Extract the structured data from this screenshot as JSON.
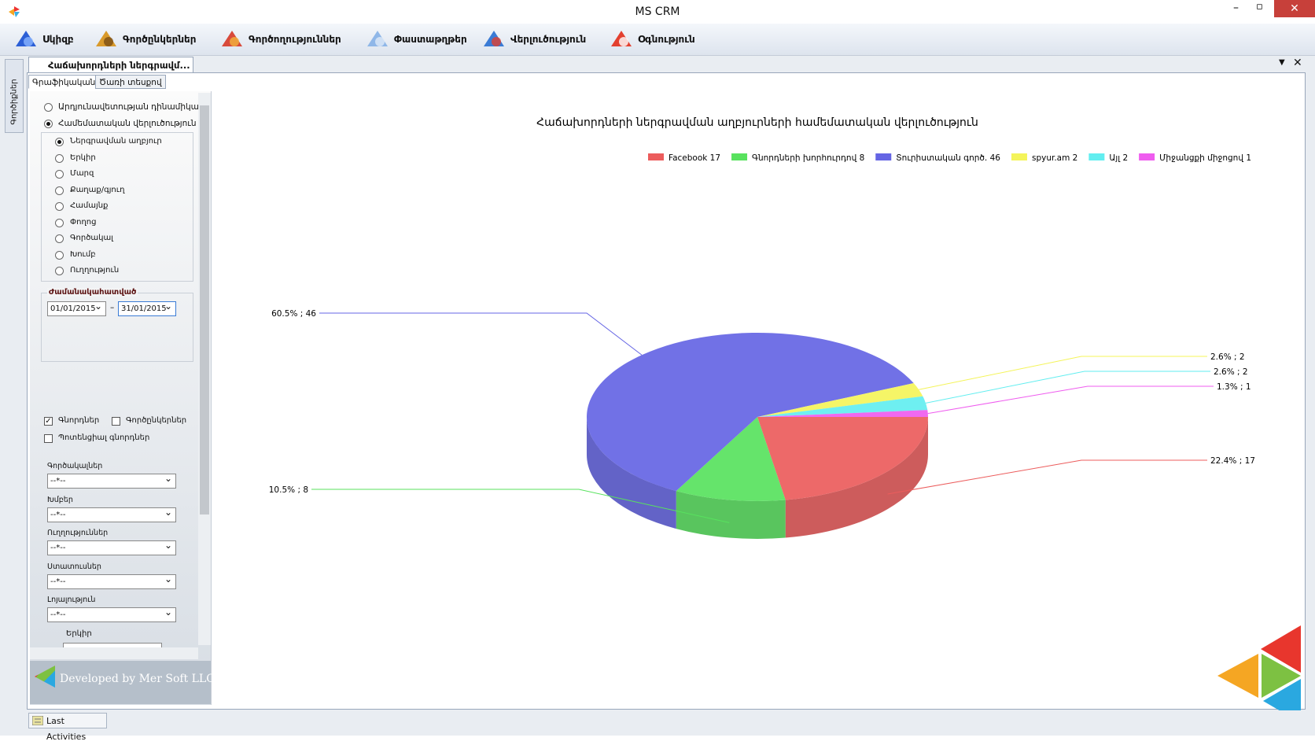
{
  "window": {
    "title": "MS CRM"
  },
  "menu": [
    "Սկիզբ",
    "Գործընկերներ",
    "Գործողություններ",
    "Փաստաթղթեր",
    "Վերլուծություն",
    "Օգնություն"
  ],
  "sidebar": {
    "label": "Գործիքներ"
  },
  "document_tab": {
    "title": "Հաճախորդների ներգրավմ..."
  },
  "subtabs": [
    "Գրաֆիկական",
    "Ծառի տեսքով"
  ],
  "filters": {
    "modes": [
      {
        "label": "Արդյունավետության դինամիկա",
        "checked": false
      },
      {
        "label": "Համեմատական վերլուծություն",
        "checked": true
      }
    ],
    "groupings": [
      {
        "label": "Ներգրավման աղբյուր",
        "checked": true
      },
      {
        "label": "Երկիր",
        "checked": false
      },
      {
        "label": "Մարզ",
        "checked": false
      },
      {
        "label": "Քաղաք/գյուղ",
        "checked": false
      },
      {
        "label": "Համայնք",
        "checked": false
      },
      {
        "label": "Փողոց",
        "checked": false
      },
      {
        "label": "Գործակալ",
        "checked": false
      },
      {
        "label": "Խումբ",
        "checked": false
      },
      {
        "label": "Ուղղություն",
        "checked": false
      }
    ],
    "period": {
      "title": "Ժամանակահատված",
      "from": "01/01/2015",
      "separator": "–",
      "to": "31/01/2015"
    },
    "checkboxes": [
      {
        "label": "Գնորդներ",
        "checked": true
      },
      {
        "label": "Գործընկերներ",
        "checked": false
      },
      {
        "label": "Պոտենցիալ գնորդներ",
        "checked": false
      }
    ],
    "dropdowns": [
      {
        "label": "Գործակալներ",
        "value": "--*--"
      },
      {
        "label": "Խմբեր",
        "value": "--*--"
      },
      {
        "label": "Ուղղություններ",
        "value": "--*--"
      },
      {
        "label": "Ստատուսներ",
        "value": "--*--"
      },
      {
        "label": "Լոյալություն",
        "value": "--*--"
      }
    ],
    "extra_label": "Երկիր"
  },
  "footer": {
    "developer": "Developed by Mer Soft LLC",
    "status_button": "Last Activities"
  },
  "chart_data": {
    "type": "pie",
    "title": "Հաճախորդների ներգրավման աղբյուրների համեմատական վերլուծություն",
    "categories": [
      "Facebook 17",
      "Գնորդների խորհուրդով 8",
      "Տուրիստական գործ. 46",
      "spyur.am 2",
      "Այլ 2",
      "Միջանցքի միջոցով 1"
    ],
    "values": [
      17,
      8,
      46,
      2,
      2,
      1
    ],
    "value_labels": [
      "22.4% ; 17",
      "10.5% ; 8",
      "60.5% ; 46",
      "2.6% ; 2",
      "2.6% ; 2",
      "1.3% ; 1"
    ],
    "colors": [
      "#ec5c5c",
      "#58e25e",
      "#6565e4",
      "#f4f45a",
      "#62eef0",
      "#ef5cef"
    ],
    "legend": "top-right"
  }
}
